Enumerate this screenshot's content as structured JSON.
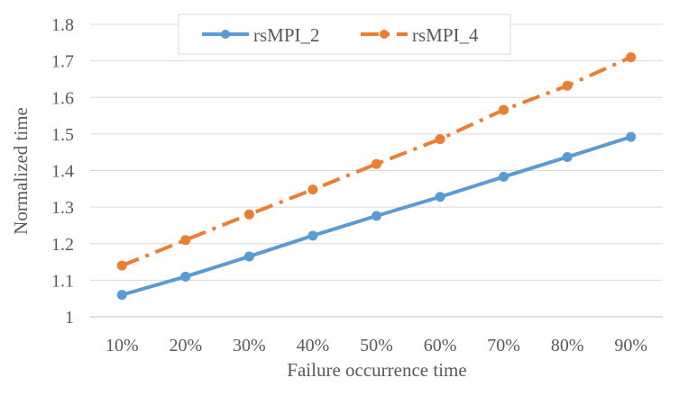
{
  "chart_data": {
    "type": "line",
    "categories": [
      "10%",
      "20%",
      "30%",
      "40%",
      "50%",
      "60%",
      "70%",
      "80%",
      "90%"
    ],
    "series": [
      {
        "name": "rsMPI_2",
        "values": [
          1.06,
          1.11,
          1.165,
          1.222,
          1.276,
          1.328,
          1.383,
          1.437,
          1.492
        ],
        "color": "#5B9BD5",
        "line_style": "solid",
        "marker": "circle"
      },
      {
        "name": "rsMPI_4",
        "values": [
          1.14,
          1.21,
          1.28,
          1.348,
          1.418,
          1.486,
          1.566,
          1.632,
          1.71
        ],
        "color": "#ED7D31",
        "line_style": "dash-dot",
        "marker": "circle"
      }
    ],
    "xlabel": "Failure occurrence time",
    "ylabel": "Normalized time",
    "ylim": [
      1,
      1.8
    ],
    "yticks": [
      "1",
      "1.1",
      "1.2",
      "1.3",
      "1.4",
      "1.5",
      "1.6",
      "1.7",
      "1.8"
    ],
    "grid": true,
    "legend_position": "top"
  }
}
